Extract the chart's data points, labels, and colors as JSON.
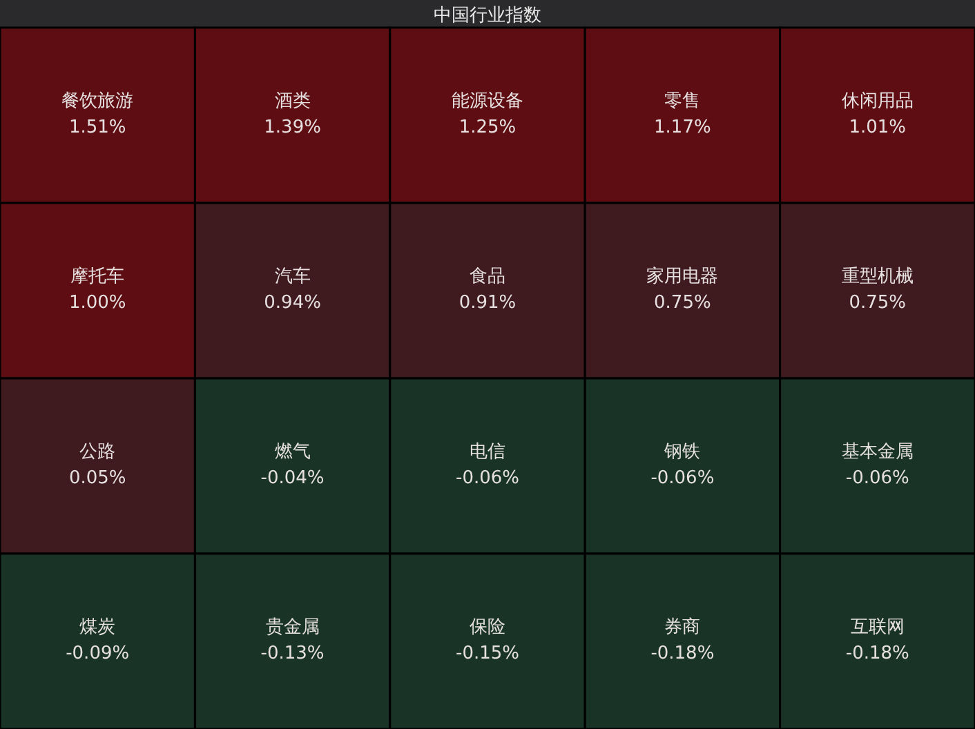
{
  "chart_data": {
    "type": "other",
    "title": "中国行业指数",
    "categories": [
      "餐饮旅游",
      "酒类",
      "能源设备",
      "零售",
      "休闲用品",
      "摩托车",
      "汽车",
      "食品",
      "家用电器",
      "重型机械",
      "公路",
      "燃气",
      "电信",
      "钢铁",
      "基本金属",
      "煤炭",
      "贵金属",
      "保险",
      "券商",
      "互联网"
    ],
    "values": [
      1.51,
      1.39,
      1.25,
      1.17,
      1.01,
      1.0,
      0.94,
      0.91,
      0.75,
      0.75,
      0.05,
      -0.04,
      -0.06,
      -0.06,
      -0.06,
      -0.09,
      -0.13,
      -0.15,
      -0.18,
      -0.18
    ],
    "value_labels": [
      "1.51%",
      "1.39%",
      "1.25%",
      "1.17%",
      "1.01%",
      "1.00%",
      "0.94%",
      "0.91%",
      "0.75%",
      "0.75%",
      "0.05%",
      "-0.04%",
      "-0.06%",
      "-0.06%",
      "-0.06%",
      "-0.09%",
      "-0.13%",
      "-0.15%",
      "-0.18%",
      "-0.18%"
    ],
    "colors": [
      "#5e0d12",
      "#5e0d12",
      "#5e0d12",
      "#5e0d12",
      "#5e0d12",
      "#5e0d12",
      "#3f1a1f",
      "#3f1a1f",
      "#3f1a1f",
      "#3f1a1f",
      "#3f1a1f",
      "#193426",
      "#193426",
      "#193426",
      "#193426",
      "#193426",
      "#193426",
      "#193426",
      "#193426",
      "#193426"
    ]
  }
}
